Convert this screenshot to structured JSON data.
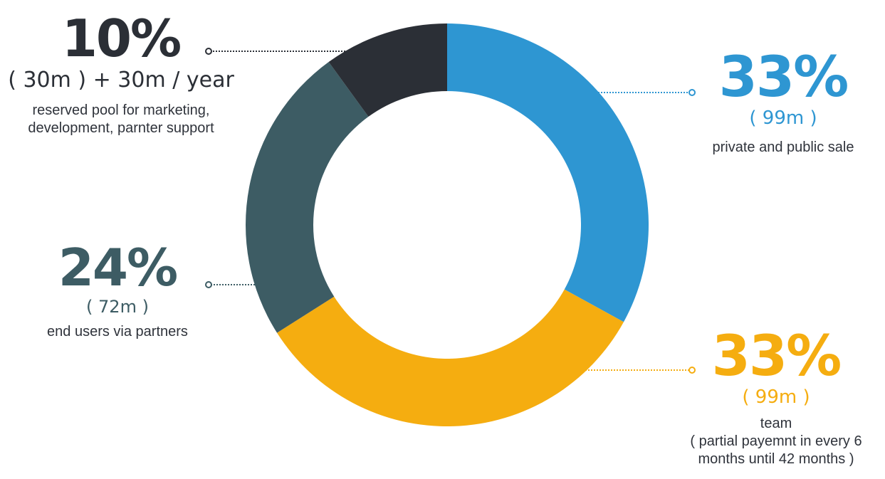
{
  "chart_data": {
    "type": "pie",
    "style": "donut",
    "slices": [
      {
        "id": "sale",
        "percent": 33,
        "percent_label": "33%",
        "amount_label": "( 99m )",
        "description_lines": [
          "private and public sale"
        ],
        "color": "#2e96d2"
      },
      {
        "id": "team",
        "percent": 33,
        "percent_label": "33%",
        "amount_label": "( 99m )",
        "description_lines": [
          "team",
          "( partial payemnt in every 6",
          "months until 42 months )"
        ],
        "color": "#f5ad10"
      },
      {
        "id": "end-users",
        "percent": 24,
        "percent_label": "24%",
        "amount_label": "( 72m )",
        "description_lines": [
          "end users via partners"
        ],
        "color": "#3d5c64"
      },
      {
        "id": "reserved",
        "percent": 10,
        "percent_label": "10%",
        "amount_label": "( 30m ) + 30m / year",
        "description_lines": [
          "reserved pool for marketing,",
          "development, parnter support"
        ],
        "color": "#2b2f36"
      }
    ]
  }
}
